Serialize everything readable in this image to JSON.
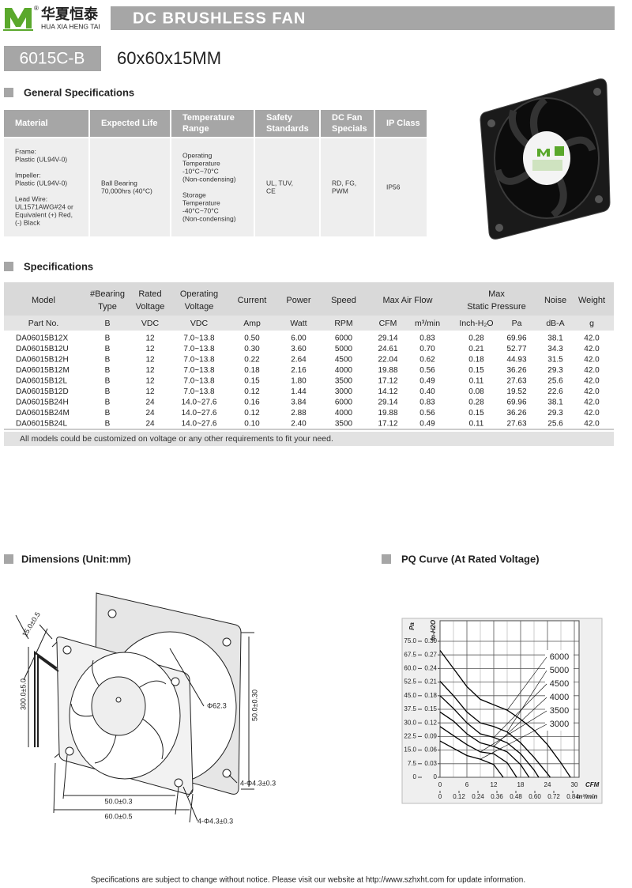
{
  "header": {
    "logo_reg": "®",
    "logo_cn": "华夏恒泰",
    "logo_en": "HUA XIA HENG TAI",
    "title": "DC BRUSHLESS FAN",
    "model": "6015C-B",
    "size": "60x60x15MM"
  },
  "general": {
    "heading": "General Specifications",
    "columns": [
      [
        "Material"
      ],
      [
        "Expected Life"
      ],
      [
        "Temperature",
        "Range"
      ],
      [
        "Safety",
        "Standards"
      ],
      [
        "DC Fan",
        "Specials"
      ],
      [
        "IP Class"
      ]
    ],
    "cells": [
      [
        [
          "Frame:",
          "Plastic (UL94V-0)"
        ],
        [
          "Impeller:",
          "Plastic (UL94V-0)"
        ],
        [
          "Lead Wire:",
          "UL1571AWG#24 or",
          "Equivalent (+) Red,",
          "(-) Black"
        ]
      ],
      [
        [
          "Ball Bearing",
          "70,000hrs (40°C)"
        ]
      ],
      [
        [
          "Operating",
          "Temperature",
          "-10°C~70°C",
          "(Non-condensing)"
        ],
        [
          "Storage",
          "Temperature",
          "-40°C~70°C",
          "(Non-condensing)"
        ]
      ],
      [
        [
          "UL, TUV,",
          "CE"
        ]
      ],
      [
        [
          "RD, FG,",
          "PWM"
        ]
      ],
      [
        [
          "IP56"
        ]
      ]
    ]
  },
  "specs": {
    "heading": "Specifications",
    "groups": [
      [
        "Model"
      ],
      [
        "#Bearing",
        "Type"
      ],
      [
        "Rated",
        "Voltage"
      ],
      [
        "Operating",
        "Voltage"
      ],
      [
        "Current"
      ],
      [
        "Power"
      ],
      [
        "Speed"
      ],
      [
        "Max  Air  Flow"
      ],
      [
        "Max",
        "Static  Pressure"
      ],
      [
        "Noise"
      ],
      [
        "Weight"
      ]
    ],
    "units": [
      "Part No.",
      "B",
      "VDC",
      "VDC",
      "Amp",
      "Watt",
      "RPM",
      "CFM",
      "m³/min",
      "Inch-H₂O",
      "Pa",
      "dB-A",
      "g"
    ],
    "rows": [
      [
        "DA06015B12X",
        "B",
        "12",
        "7.0~13.8",
        "0.50",
        "6.00",
        "6000",
        "29.14",
        "0.83",
        "0.28",
        "69.96",
        "38.1",
        "42.0"
      ],
      [
        "DA06015B12U",
        "B",
        "12",
        "7.0~13.8",
        "0.30",
        "3.60",
        "5000",
        "24.61",
        "0.70",
        "0.21",
        "52.77",
        "34.3",
        "42.0"
      ],
      [
        "DA06015B12H",
        "B",
        "12",
        "7.0~13.8",
        "0.22",
        "2.64",
        "4500",
        "22.04",
        "0.62",
        "0.18",
        "44.93",
        "31.5",
        "42.0"
      ],
      [
        "DA06015B12M",
        "B",
        "12",
        "7.0~13.8",
        "0.18",
        "2.16",
        "4000",
        "19.88",
        "0.56",
        "0.15",
        "36.26",
        "29.3",
        "42.0"
      ],
      [
        "DA06015B12L",
        "B",
        "12",
        "7.0~13.8",
        "0.15",
        "1.80",
        "3500",
        "17.12",
        "0.49",
        "0.11",
        "27.63",
        "25.6",
        "42.0"
      ],
      [
        "DA06015B12D",
        "B",
        "12",
        "7.0~13.8",
        "0.12",
        "1.44",
        "3000",
        "14.12",
        "0.40",
        "0.08",
        "19.52",
        "22.6",
        "42.0"
      ],
      [
        "DA06015B24H",
        "B",
        "24",
        "14.0~27.6",
        "0.16",
        "3.84",
        "6000",
        "29.14",
        "0.83",
        "0.28",
        "69.96",
        "38.1",
        "42.0"
      ],
      [
        "DA06015B24M",
        "B",
        "24",
        "14.0~27.6",
        "0.12",
        "2.88",
        "4000",
        "19.88",
        "0.56",
        "0.15",
        "36.26",
        "29.3",
        "42.0"
      ],
      [
        "DA06015B24L",
        "B",
        "24",
        "14.0~27.6",
        "0.10",
        "2.40",
        "3500",
        "17.12",
        "0.49",
        "0.11",
        "27.63",
        "25.6",
        "42.0"
      ]
    ],
    "note": "All models could be customized on voltage or any other requirements to fit your need."
  },
  "dimensions": {
    "heading": "Dimensions (Unit:mm)",
    "thickness": "15.0±0.5",
    "lead": "300.0±5.0",
    "opening": "Φ62.3",
    "height": "50.0±0.30",
    "hole_back": "4-Φ4.3±0.3",
    "pitch": "50.0±0.3",
    "width": "60.0±0.5",
    "hole_front": "4-Φ4.3±0.3"
  },
  "chart_data": {
    "type": "line",
    "title": "PQ Curve (At Rated Voltage)",
    "y_label": "Pa",
    "y2_label": "In-H2O",
    "x_label": "CFM",
    "x2_label": "m³/min",
    "xlim": [
      0,
      30
    ],
    "ylim": [
      0,
      75
    ],
    "x2lim": [
      0,
      0.85
    ],
    "y2lim": [
      0,
      0.3
    ],
    "xticks": [
      0,
      6,
      12,
      18,
      24,
      30
    ],
    "yticks": [
      0,
      7.5,
      {
        "value": 15,
        "label": "15.0"
      },
      22.5,
      {
        "value": 30,
        "label": "30.0"
      },
      37.5,
      {
        "value": 45,
        "label": "45.0"
      },
      52.5,
      {
        "value": 60,
        "label": "60.0"
      },
      67.5,
      {
        "value": 75,
        "label": "75.0"
      }
    ],
    "x2ticks": [
      0,
      0.12,
      0.24,
      0.36,
      0.48,
      {
        "value": 0.6,
        "label": "0.60"
      },
      0.72,
      0.84
    ],
    "y2ticks": [
      0,
      0.03,
      0.06,
      0.09,
      0.12,
      0.15,
      0.18,
      0.21,
      0.24,
      0.27,
      {
        "value": 0.3,
        "label": "0.30"
      }
    ],
    "grid": true,
    "color": "#000000",
    "series": [
      {
        "name": "6000",
        "x": [
          0,
          3,
          6,
          9,
          12,
          15,
          18,
          21,
          24,
          27,
          29.14
        ],
        "values": [
          70,
          60,
          50,
          43,
          40,
          37,
          32,
          26,
          18,
          8,
          0
        ]
      },
      {
        "name": "5000",
        "x": [
          0,
          3,
          6,
          9,
          12,
          15,
          18,
          21,
          24,
          24.61
        ],
        "values": [
          53,
          45,
          36,
          30,
          28,
          25,
          19,
          11,
          2,
          0
        ]
      },
      {
        "name": "4500",
        "x": [
          0,
          3,
          6,
          9,
          12,
          15,
          18,
          21,
          22.04
        ],
        "values": [
          45,
          38,
          30,
          24,
          22,
          19,
          13,
          4,
          0
        ]
      },
      {
        "name": "4000",
        "x": [
          0,
          3,
          6,
          9,
          12,
          15,
          18,
          19.88
        ],
        "values": [
          36,
          31,
          24,
          19,
          17,
          14,
          7,
          0
        ]
      },
      {
        "name": "3500",
        "x": [
          0,
          3,
          6,
          9,
          12,
          15,
          17.12
        ],
        "values": [
          28,
          23,
          18,
          14,
          13,
          8,
          0
        ]
      },
      {
        "name": "3000",
        "x": [
          0,
          3,
          6,
          9,
          12,
          14.12
        ],
        "values": [
          20,
          16,
          12,
          10,
          7,
          0
        ]
      }
    ]
  },
  "footer": "Specifications are subject to change without notice. Please visit our website at http://www.szhxht.com for update information."
}
